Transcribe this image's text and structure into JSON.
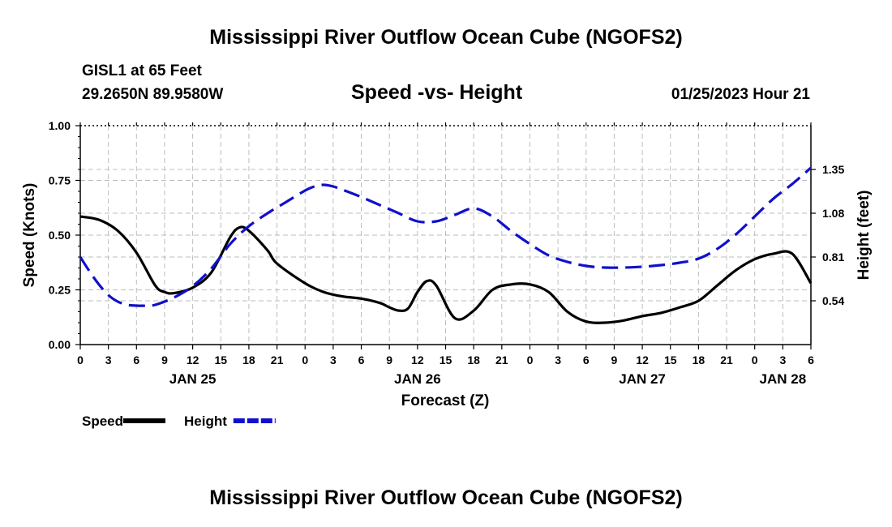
{
  "page": {
    "title": "Mississippi River Outflow Ocean Cube (NGOFS2)",
    "station": "GISL1 at 65 Feet",
    "coordinates": "29.2650N  89.9580W",
    "timestamp": "01/25/2023 Hour 21",
    "footer_title": "Mississippi River Outflow Ocean Cube (NGOFS2)"
  },
  "chart_data": {
    "type": "line",
    "title": "Speed -vs- Height",
    "xlabel": "Forecast (Z)",
    "ylabel_left": "Speed (Knots)",
    "ylabel_right": "Height (feet)",
    "xlim": [
      0,
      78
    ],
    "ylim_left": [
      0,
      1.0
    ],
    "ylim_right": [
      0.27,
      1.62
    ],
    "x_ticks": [
      0,
      3,
      6,
      9,
      12,
      15,
      18,
      21,
      24,
      27,
      30,
      33,
      36,
      39,
      42,
      45,
      48,
      51,
      54,
      57,
      60,
      63,
      66,
      69,
      72,
      75,
      78
    ],
    "x_tick_labels": [
      "0",
      "3",
      "6",
      "9",
      "12",
      "15",
      "18",
      "21",
      "0",
      "3",
      "6",
      "9",
      "12",
      "15",
      "18",
      "21",
      "0",
      "3",
      "6",
      "9",
      "12",
      "15",
      "18",
      "21",
      "0",
      "3",
      "6"
    ],
    "day_labels": [
      {
        "label": "JAN 25",
        "x": 12
      },
      {
        "label": "JAN 26",
        "x": 36
      },
      {
        "label": "JAN 27",
        "x": 60
      },
      {
        "label": "JAN 28",
        "x": 75
      }
    ],
    "y_left_ticks": [
      0,
      0.25,
      0.5,
      0.75,
      1.0
    ],
    "y_left_tick_labels": [
      "0.00",
      "0.25",
      "0.50",
      "0.75",
      "1.00"
    ],
    "y_right_ticks": [
      0.54,
      0.81,
      1.08,
      1.35
    ],
    "y_right_tick_labels": [
      "0.54",
      "0.81",
      "1.08",
      "1.35"
    ],
    "grid": true,
    "legend_position": "bottom-left",
    "series": [
      {
        "name": "Speed",
        "axis": "left",
        "color": "#000000",
        "dash": "solid",
        "x": [
          0,
          2,
          4,
          6,
          8,
          9,
          10,
          12,
          14,
          16,
          17,
          18,
          20,
          21,
          24,
          26,
          28,
          30,
          32,
          33,
          34,
          35,
          36,
          37,
          38,
          40,
          42,
          44,
          46,
          48,
          50,
          52,
          54,
          56,
          58,
          60,
          62,
          64,
          66,
          68,
          70,
          72,
          74,
          76,
          78
        ],
        "values": [
          0.585,
          0.57,
          0.52,
          0.42,
          0.27,
          0.24,
          0.235,
          0.26,
          0.33,
          0.49,
          0.535,
          0.52,
          0.43,
          0.37,
          0.28,
          0.24,
          0.22,
          0.21,
          0.19,
          0.17,
          0.155,
          0.165,
          0.24,
          0.29,
          0.27,
          0.12,
          0.155,
          0.25,
          0.275,
          0.275,
          0.24,
          0.15,
          0.105,
          0.1,
          0.11,
          0.13,
          0.145,
          0.17,
          0.2,
          0.27,
          0.34,
          0.39,
          0.415,
          0.415,
          0.28
        ]
      },
      {
        "name": "Height",
        "axis": "right",
        "color": "#1010cc",
        "dash": "dashed",
        "x": [
          0,
          1,
          2,
          3,
          4,
          5,
          6,
          7,
          8,
          10,
          12,
          14,
          16,
          18,
          20,
          22,
          24,
          25,
          26,
          27,
          28,
          30,
          32,
          34,
          36,
          38,
          40,
          42,
          44,
          46,
          48,
          50,
          52,
          54,
          56,
          58,
          60,
          62,
          64,
          66,
          68,
          70,
          72,
          74,
          76,
          78
        ],
        "values": [
          0.81,
          0.72,
          0.64,
          0.575,
          0.535,
          0.515,
          0.51,
          0.51,
          0.515,
          0.56,
          0.63,
          0.74,
          0.89,
          1.0,
          1.08,
          1.15,
          1.22,
          1.245,
          1.255,
          1.245,
          1.225,
          1.18,
          1.13,
          1.08,
          1.03,
          1.03,
          1.07,
          1.11,
          1.06,
          0.97,
          0.89,
          0.82,
          0.78,
          0.755,
          0.745,
          0.745,
          0.75,
          0.76,
          0.775,
          0.8,
          0.86,
          0.95,
          1.06,
          1.17,
          1.26,
          1.36
        ]
      }
    ]
  }
}
